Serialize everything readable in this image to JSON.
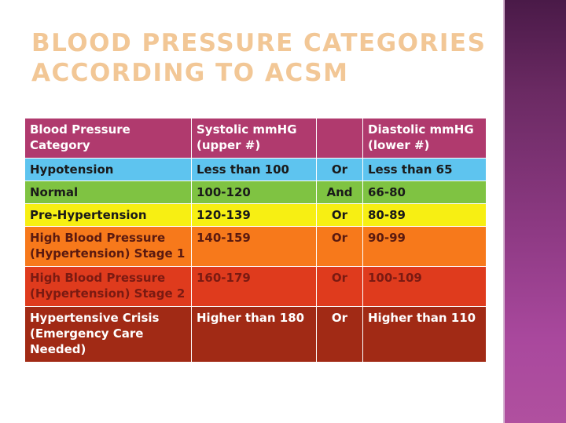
{
  "slide": {
    "title_line1": "BLOOD PRESSURE CATEGORIES",
    "title_line2": "ACCORDING TO ACSM"
  },
  "table": {
    "headers": {
      "category": "Blood Pressure Category",
      "systolic": "Systolic mmHG (upper #)",
      "conjunction": "",
      "diastolic": "Diastolic mmHG (lower #)"
    },
    "rows": [
      {
        "category": "Hypotension",
        "systolic": "Less than 100",
        "conjunction": "Or",
        "diastolic": "Less than 65",
        "color": "#5ec4ef"
      },
      {
        "category": "Normal",
        "systolic": "100-120",
        "conjunction": "And",
        "diastolic": "66-80",
        "color": "#7fc342"
      },
      {
        "category": "Pre-Hypertension",
        "systolic": "120-139",
        "conjunction": "Or",
        "diastolic": "80-89",
        "color": "#f7ef13"
      },
      {
        "category": "High Blood Pressure (Hypertension) Stage 1",
        "systolic": "140-159",
        "conjunction": "Or",
        "diastolic": "90-99",
        "color": "#f7791b"
      },
      {
        "category": "High Blood Pressure (Hypertension) Stage 2",
        "systolic": "160-179",
        "conjunction": "Or",
        "diastolic": "100-109",
        "color": "#df3b1d"
      },
      {
        "category": "Hypertensive Crisis (Emergency Care Needed)",
        "systolic": "Higher than 180",
        "conjunction": "Or",
        "diastolic": "Higher than 110",
        "color": "#a12a15"
      }
    ]
  },
  "colors": {
    "title": "#f2c796",
    "header_bg": "#b03a6e",
    "side_band": "#8e3a84"
  }
}
